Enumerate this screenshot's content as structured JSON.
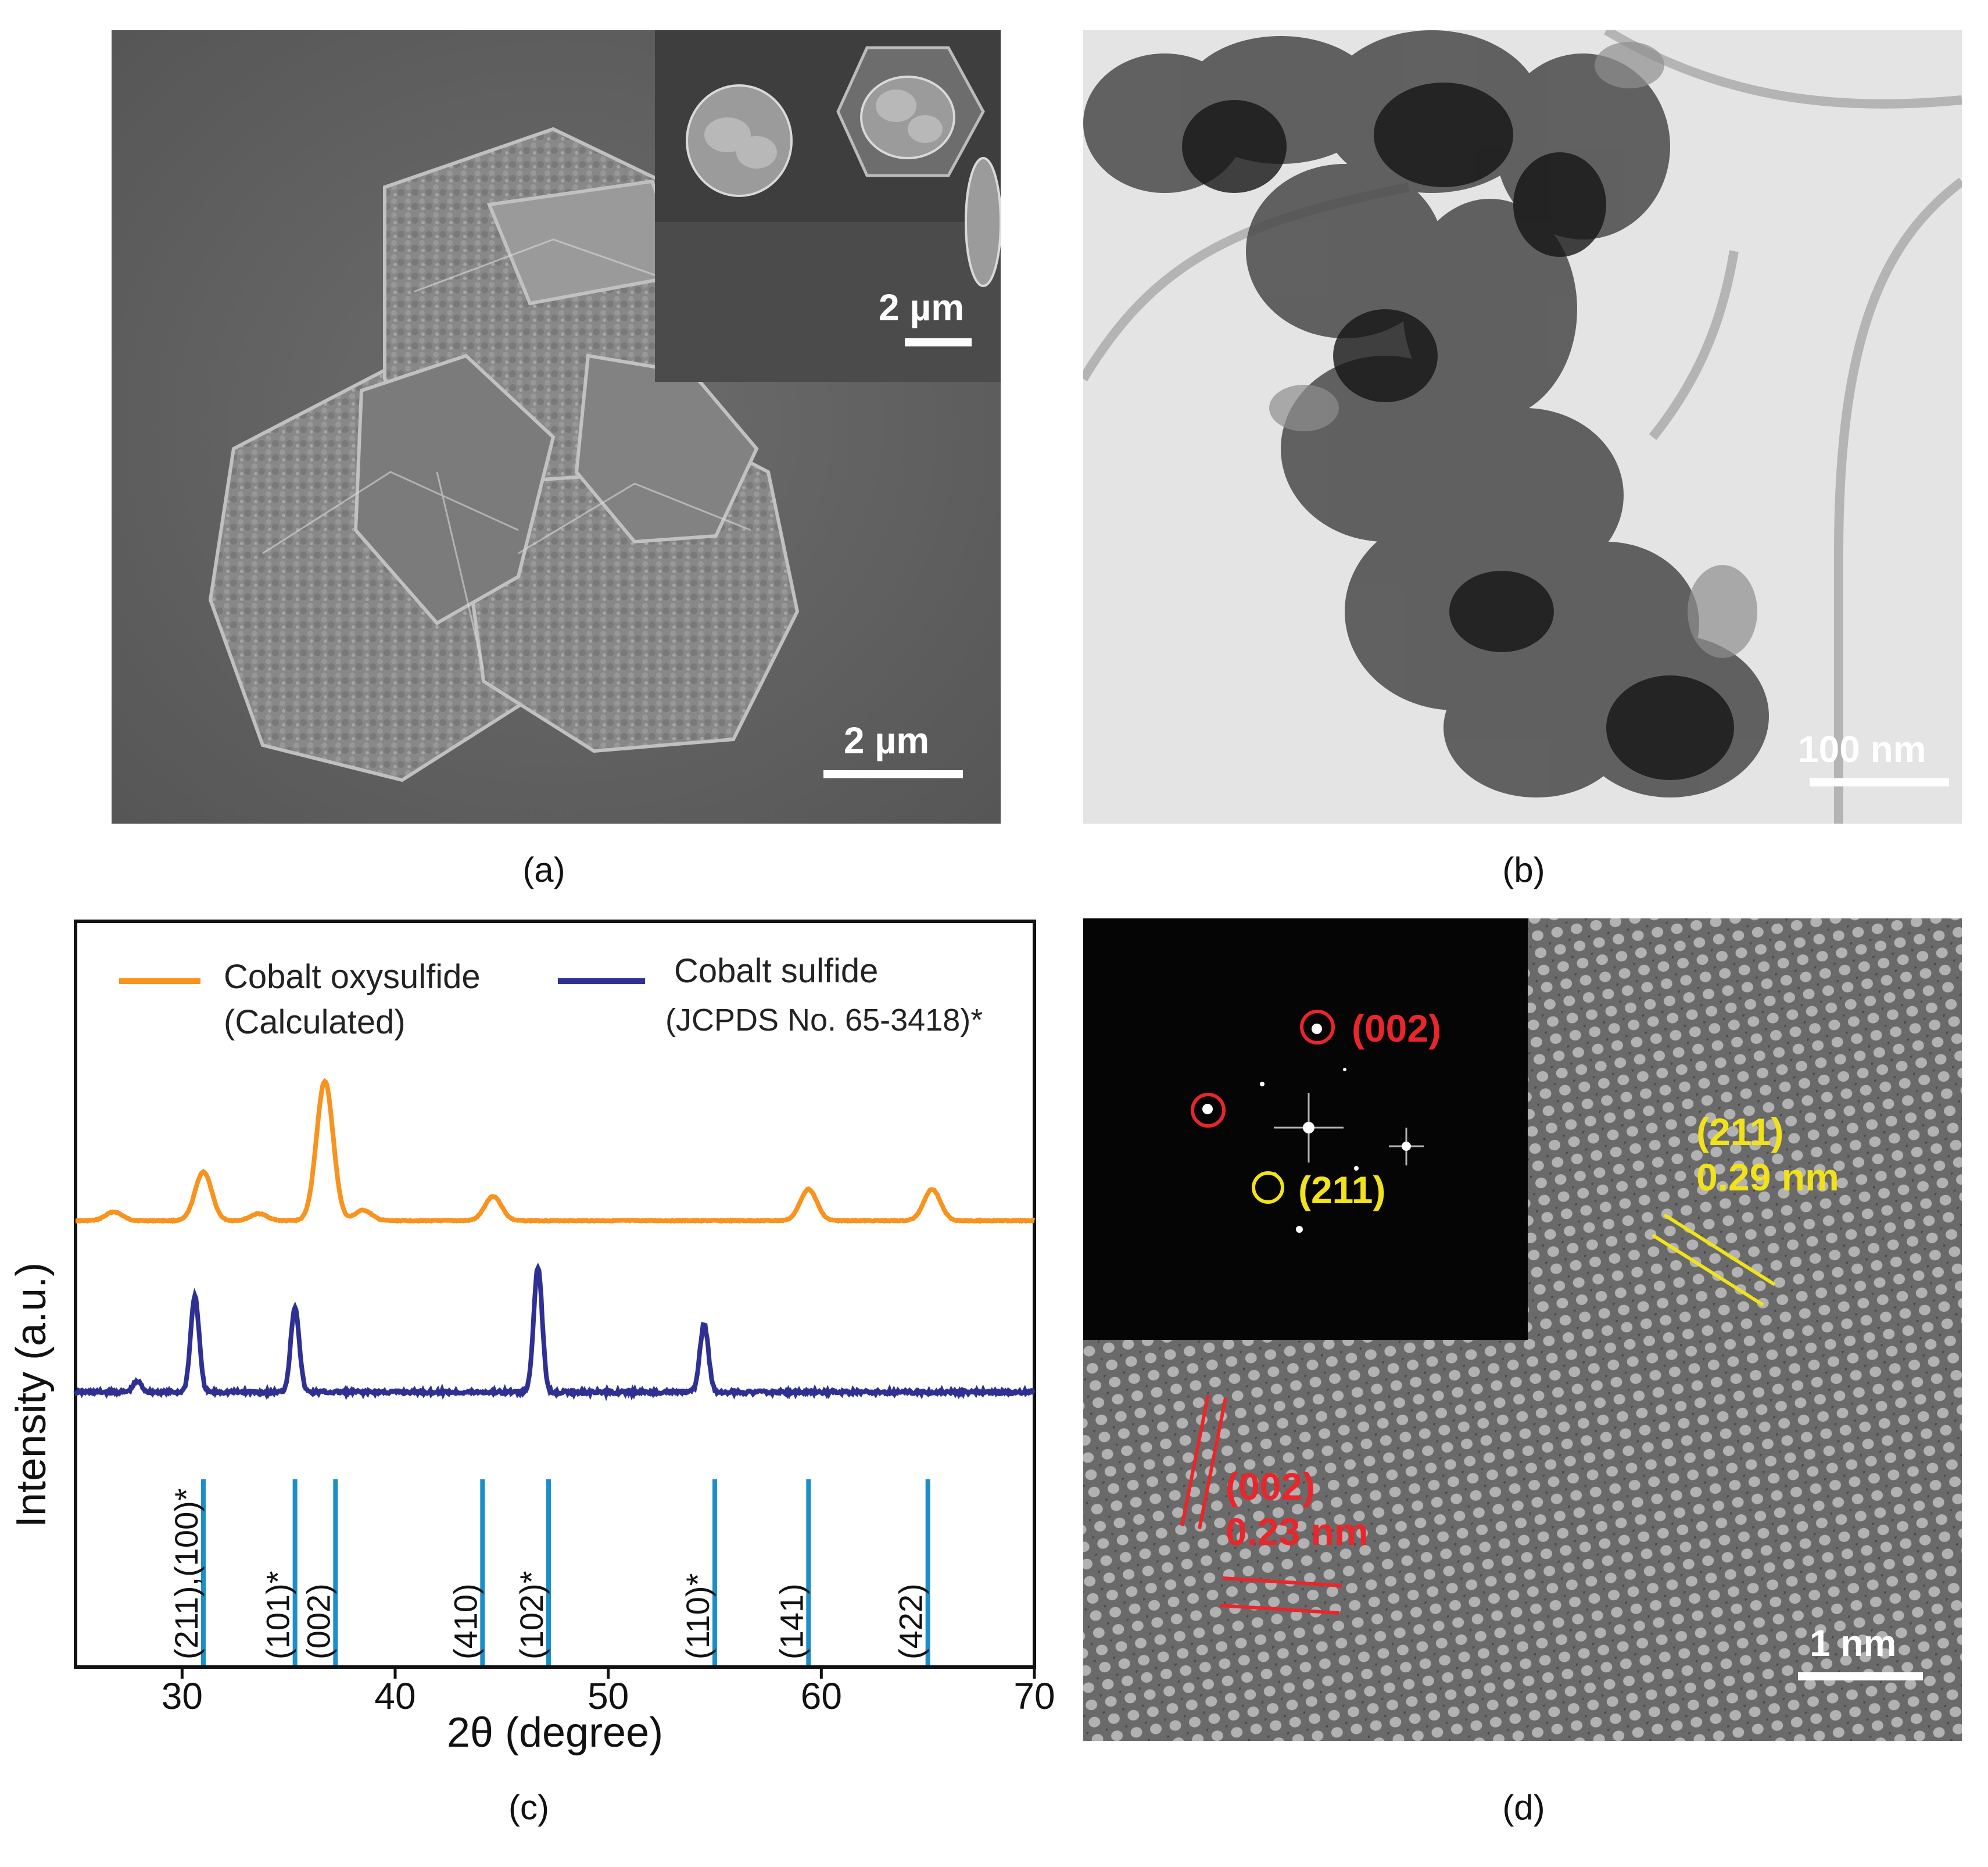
{
  "panels": {
    "a": {
      "caption": "(a)",
      "scale_bar": "2 µm",
      "inset_scale_bar": "2 µm"
    },
    "b": {
      "caption": "(b)",
      "scale_bar": "100 nm"
    },
    "c": {
      "caption": "(c)"
    },
    "d": {
      "caption": "(d)",
      "scale_bar": "1 nm",
      "fft_label_002": "(002)",
      "fft_label_211": "(211)",
      "lattice_211_plane": "(211)",
      "lattice_211_spacing": "0.29 nm",
      "lattice_002_plane": "(002)",
      "lattice_002_spacing": "0.23 nm",
      "colors": {
        "red": "#e8262b",
        "yellow": "#f2e21b"
      }
    }
  },
  "chart_data": {
    "type": "line",
    "xlabel": "2θ (degree)",
    "ylabel": "Intensity (a.u.)",
    "xlim": [
      25,
      70
    ],
    "x_ticks": [
      30,
      40,
      50,
      60,
      70
    ],
    "series": [
      {
        "name": "Cobalt oxysulfide",
        "name_line2": "(Calculated)",
        "color": "#f7931e",
        "peaks": [
          {
            "x": 26.8,
            "height": 0.5
          },
          {
            "x": 31.0,
            "height": 2.8
          },
          {
            "x": 33.6,
            "height": 0.4
          },
          {
            "x": 36.7,
            "height": 8.0
          },
          {
            "x": 38.5,
            "height": 0.6
          },
          {
            "x": 44.6,
            "height": 1.4
          },
          {
            "x": 59.4,
            "height": 1.8
          },
          {
            "x": 65.2,
            "height": 1.8
          }
        ]
      },
      {
        "name": "Cobalt sulfide",
        "name_line2": "(JCPDS No. 65-3418)*",
        "color": "#2e3192",
        "peaks": [
          {
            "x": 27.9,
            "height": 0.6
          },
          {
            "x": 30.6,
            "height": 5.5
          },
          {
            "x": 35.3,
            "height": 4.9
          },
          {
            "x": 46.7,
            "height": 7.2
          },
          {
            "x": 54.5,
            "height": 3.9
          }
        ]
      }
    ],
    "reference_lines": {
      "color": "#1c8fc9",
      "items": [
        {
          "x": 31.0,
          "label": "(211),(100)*"
        },
        {
          "x": 35.3,
          "label": "(101)*"
        },
        {
          "x": 37.2,
          "label": "(002)"
        },
        {
          "x": 44.1,
          "label": "(410)"
        },
        {
          "x": 47.2,
          "label": "(102)*"
        },
        {
          "x": 55.0,
          "label": "(110)*"
        },
        {
          "x": 59.4,
          "label": "(141)"
        },
        {
          "x": 65.0,
          "label": "(422)"
        }
      ]
    }
  }
}
